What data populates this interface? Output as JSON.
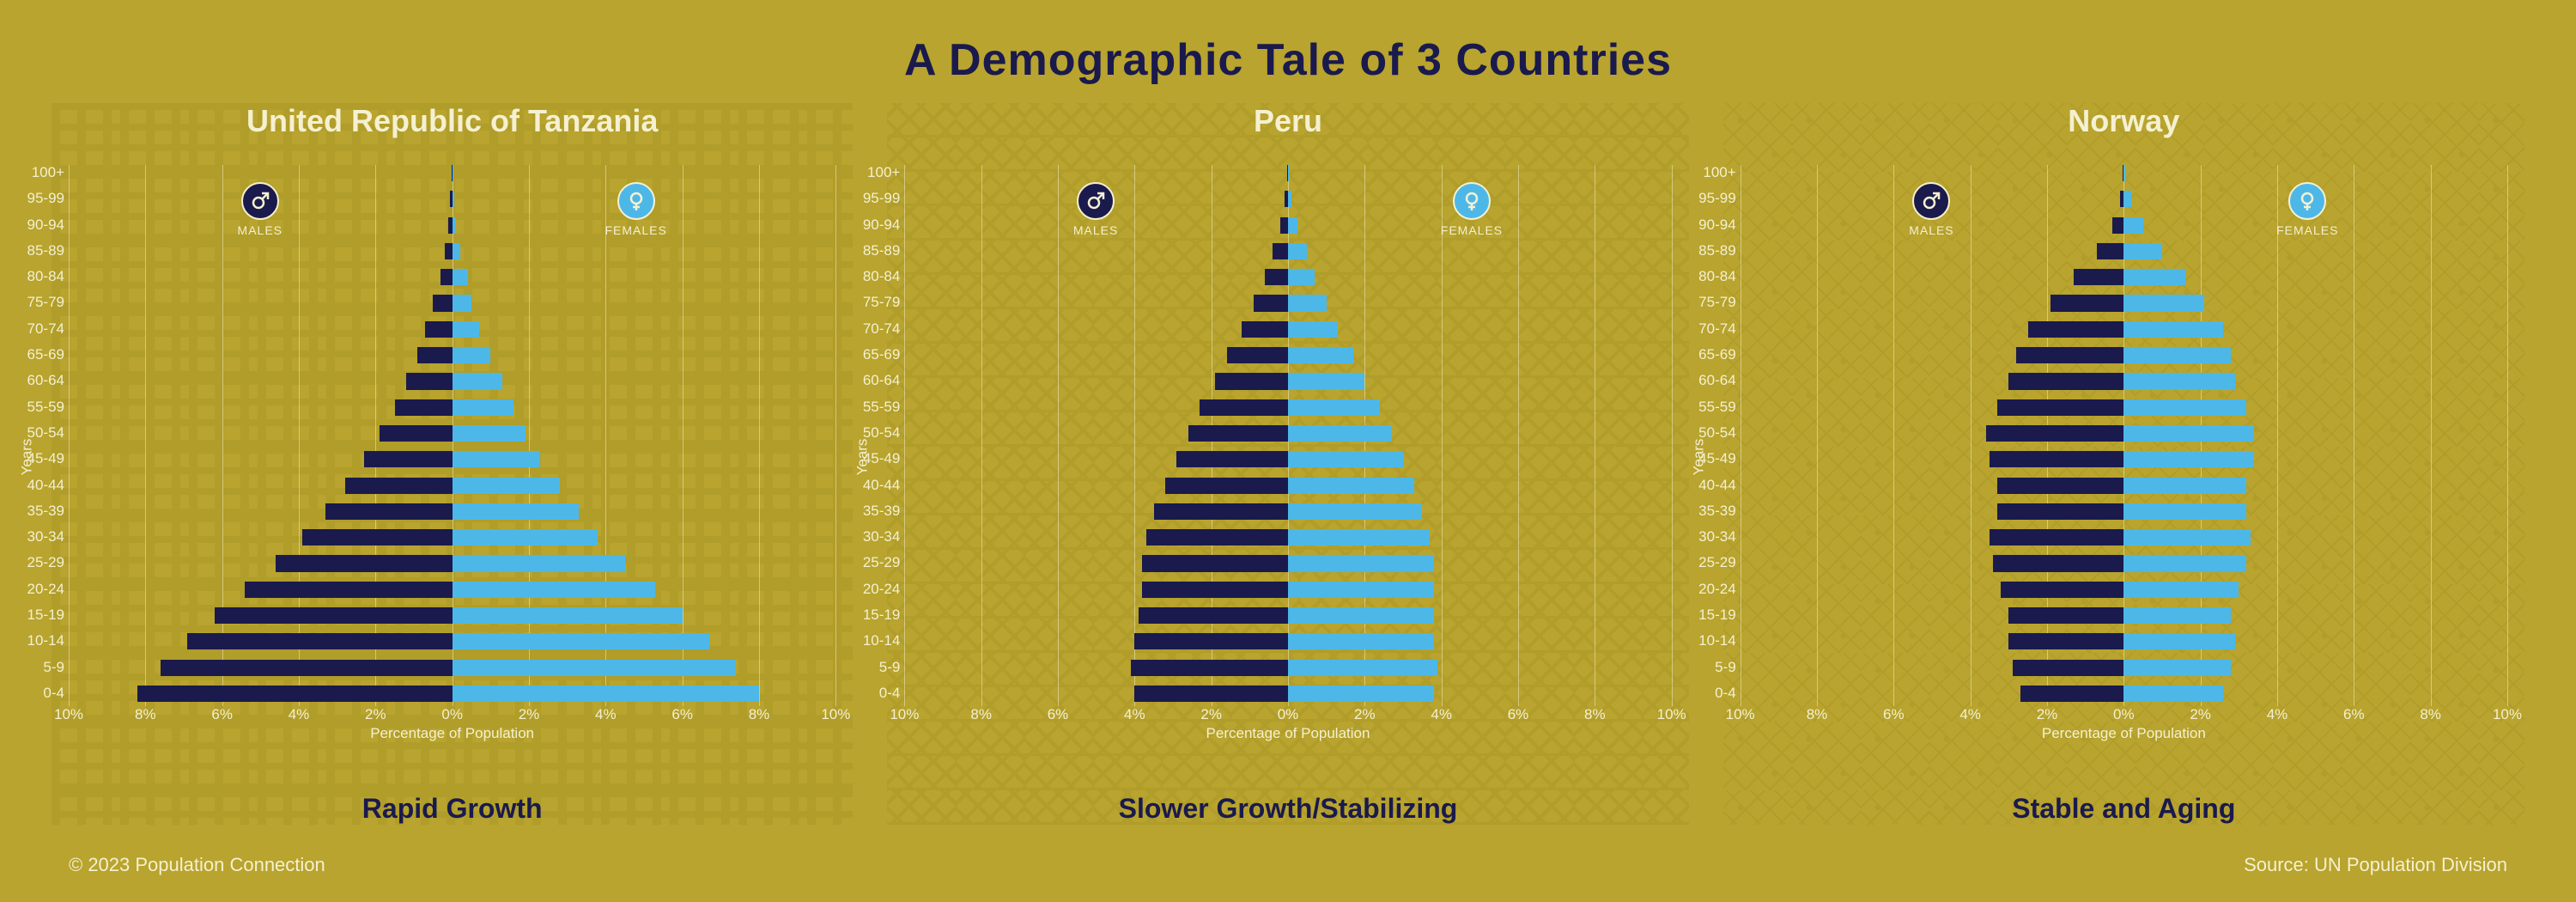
{
  "title": "A Demographic Tale of 3 Countries",
  "copyright": "© 2023 Population Connection",
  "source": "Source: UN Population Division",
  "colors": {
    "background": "#b8a42e",
    "male_bar": "#1a1a4d",
    "female_bar": "#4db8e8",
    "text_light": "#f5f0d0",
    "text_dark": "#1a1a4d",
    "gridline": "rgba(245,240,208,0.5)"
  },
  "typography": {
    "title_fontsize": 52,
    "panel_title_fontsize": 36,
    "caption_fontsize": 32,
    "axis_label_fontsize": 17,
    "tick_fontsize": 17
  },
  "axis": {
    "x_label": "Percentage of Population",
    "y_label": "Years",
    "x_ticks": [
      "10%",
      "8%",
      "6%",
      "4%",
      "2%",
      "0%",
      "2%",
      "4%",
      "6%",
      "8%",
      "10%"
    ],
    "x_max": 10,
    "age_labels": [
      "0-4",
      "5-9",
      "10-14",
      "15-19",
      "20-24",
      "25-29",
      "30-34",
      "35-39",
      "40-44",
      "45-49",
      "50-54",
      "55-59",
      "60-64",
      "65-69",
      "70-74",
      "75-79",
      "80-84",
      "85-89",
      "90-94",
      "95-99",
      "100+"
    ]
  },
  "gender": {
    "male_label": "MALES",
    "female_label": "FEMALES"
  },
  "panels": [
    {
      "title": "United Republic of Tanzania",
      "caption": "Rapid Growth",
      "pattern": "kente",
      "male": [
        8.2,
        7.6,
        6.9,
        6.2,
        5.4,
        4.6,
        3.9,
        3.3,
        2.8,
        2.3,
        1.9,
        1.5,
        1.2,
        0.9,
        0.7,
        0.5,
        0.3,
        0.2,
        0.1,
        0.05,
        0.02
      ],
      "female": [
        8.0,
        7.4,
        6.7,
        6.0,
        5.3,
        4.5,
        3.8,
        3.3,
        2.8,
        2.3,
        1.9,
        1.6,
        1.3,
        1.0,
        0.7,
        0.5,
        0.4,
        0.2,
        0.1,
        0.05,
        0.02
      ]
    },
    {
      "title": "Peru",
      "caption": "Slower Growth/Stabilizing",
      "pattern": "andean",
      "male": [
        4.0,
        4.1,
        4.0,
        3.9,
        3.8,
        3.8,
        3.7,
        3.5,
        3.2,
        2.9,
        2.6,
        2.3,
        1.9,
        1.6,
        1.2,
        0.9,
        0.6,
        0.4,
        0.2,
        0.08,
        0.03
      ],
      "female": [
        3.8,
        3.9,
        3.8,
        3.8,
        3.8,
        3.8,
        3.7,
        3.5,
        3.3,
        3.0,
        2.7,
        2.4,
        2.0,
        1.7,
        1.3,
        1.0,
        0.7,
        0.5,
        0.25,
        0.1,
        0.04
      ]
    },
    {
      "title": "Norway",
      "caption": "Stable and Aging",
      "pattern": "nordic",
      "male": [
        2.7,
        2.9,
        3.0,
        3.0,
        3.2,
        3.4,
        3.5,
        3.3,
        3.3,
        3.5,
        3.6,
        3.3,
        3.0,
        2.8,
        2.5,
        1.9,
        1.3,
        0.7,
        0.3,
        0.1,
        0.03
      ],
      "female": [
        2.6,
        2.8,
        2.9,
        2.8,
        3.0,
        3.2,
        3.3,
        3.2,
        3.2,
        3.4,
        3.4,
        3.2,
        2.9,
        2.8,
        2.6,
        2.1,
        1.6,
        1.0,
        0.5,
        0.2,
        0.05
      ]
    }
  ]
}
